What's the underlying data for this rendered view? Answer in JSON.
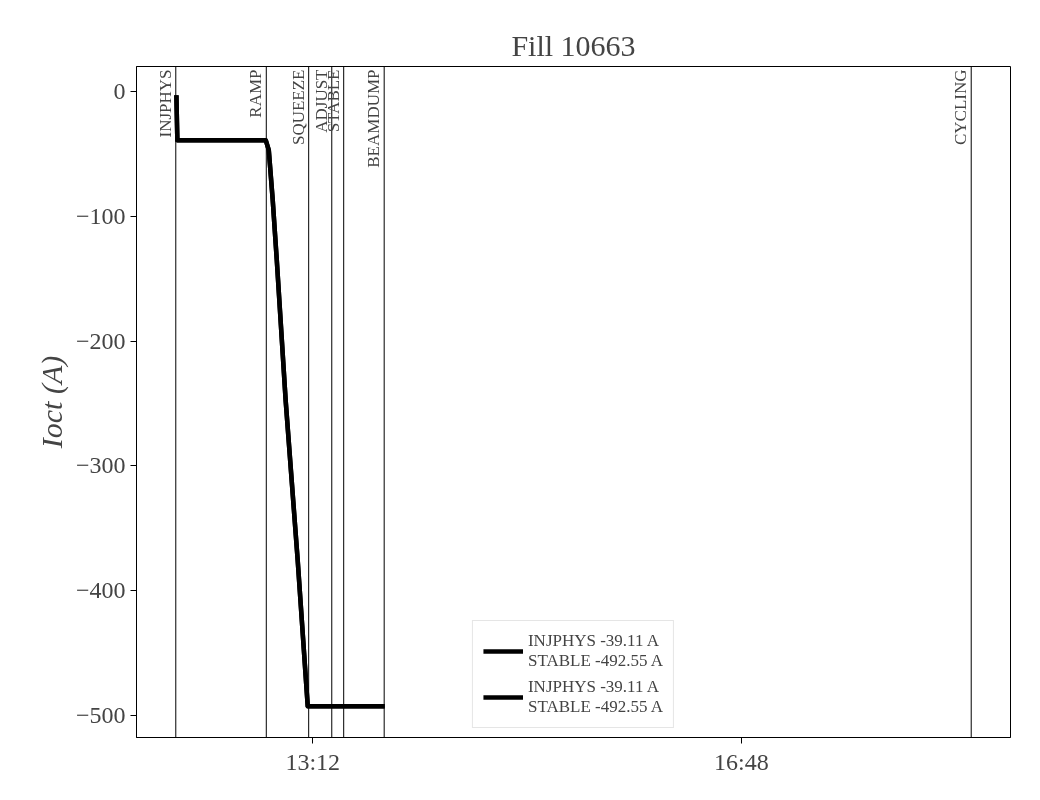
{
  "chart_data": {
    "type": "line",
    "title": "Fill 10663",
    "ylabel": "Ioct (A)",
    "x": [
      12.055,
      12.063,
      12.806,
      12.831,
      12.864,
      12.898,
      12.973,
      13.074,
      13.158,
      13.804
    ],
    "series": [
      {
        "name": "INJPHYS -39.11 A\nSTABLE -492.55 A",
        "color": "#000000",
        "values": [
          -3,
          -39.11,
          -39.11,
          -47,
          -87,
          -135,
          -248,
          -376,
          -492.55,
          -492.55
        ]
      },
      {
        "name": "INJPHYS -39.11 A\nSTABLE -492.55 A",
        "color": "#000000",
        "values": [
          -3,
          -39.11,
          -39.11,
          -47,
          -87,
          -135,
          -248,
          -376,
          -492.55,
          -492.55
        ]
      }
    ],
    "xlim": [
      11.72,
      19.06
    ],
    "xticks": [
      {
        "value": 13.2,
        "label": "13:12"
      },
      {
        "value": 16.8,
        "label": "16:48"
      }
    ],
    "ylim": [
      -517.6,
      20
    ],
    "yticks": [
      0,
      -100,
      -200,
      -300,
      -400,
      -500
    ],
    "ref_lines": [
      {
        "axis": "x",
        "value": 12.05,
        "label": "INJPHYS",
        "color": "#000000"
      },
      {
        "axis": "x",
        "value": 12.81,
        "label": "RAMP",
        "color": "#000000"
      },
      {
        "axis": "x",
        "value": 13.166,
        "label": "SQUEEZE",
        "color": "#000000"
      },
      {
        "axis": "x",
        "value": 13.36,
        "label": "ADJUST",
        "color": "#000000"
      },
      {
        "axis": "x",
        "value": 13.46,
        "label": "STABLE",
        "color": "#000000"
      },
      {
        "axis": "x",
        "value": 13.8,
        "label": "BEAMDUMP",
        "color": "#000000"
      },
      {
        "axis": "x",
        "value": 18.73,
        "label": "CYCLING",
        "color": "#000000"
      }
    ],
    "grid": false,
    "legend": "bottom",
    "marker": "none",
    "line_style": "solid"
  }
}
